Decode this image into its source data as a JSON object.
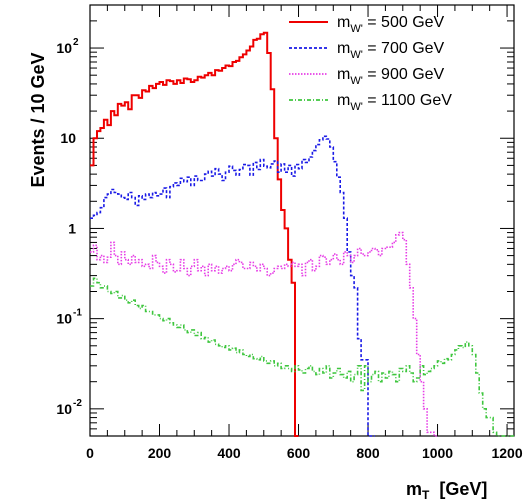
{
  "chart_data": {
    "type": "line",
    "title": "",
    "xlabel": {
      "main": "m",
      "sub": "T",
      "unit": "[GeV]"
    },
    "ylabel": "Events / 10  GeV",
    "xlim": [
      0,
      1220
    ],
    "ylim": [
      0.005,
      300
    ],
    "y_scale": "log",
    "grid": false,
    "legend_position": "top-right",
    "x_ticks": [
      0,
      200,
      400,
      600,
      800,
      1000,
      1200
    ],
    "y_ticks": [
      {
        "value": 0.01,
        "base": "10",
        "exp": "-2"
      },
      {
        "value": 0.1,
        "base": "10",
        "exp": "-1"
      },
      {
        "value": 1,
        "base": "1",
        "exp": ""
      },
      {
        "value": 10,
        "base": "10",
        "exp": ""
      },
      {
        "value": 100,
        "base": "10",
        "exp": "2"
      }
    ],
    "series": [
      {
        "name": "m_W' = 500 GeV",
        "legend": {
          "m": "m",
          "sub": "W'",
          "rest": " = 500 GeV"
        },
        "color": "#ee0000",
        "dash": "",
        "x": [
          0,
          10,
          20,
          30,
          40,
          50,
          60,
          70,
          80,
          90,
          100,
          110,
          120,
          130,
          140,
          150,
          160,
          170,
          180,
          190,
          200,
          210,
          220,
          230,
          240,
          250,
          260,
          270,
          280,
          290,
          300,
          310,
          320,
          330,
          340,
          350,
          360,
          370,
          380,
          390,
          400,
          410,
          420,
          430,
          440,
          450,
          460,
          470,
          480,
          490,
          500,
          510,
          520,
          530,
          540,
          550,
          560,
          570,
          580,
          590
        ],
        "values": [
          5,
          10,
          12,
          13,
          16,
          14,
          20,
          18,
          24,
          23,
          25,
          21,
          30,
          30,
          28,
          34,
          33,
          38,
          36,
          40,
          42,
          39,
          44,
          43,
          40,
          44,
          41,
          46,
          45,
          42,
          44,
          48,
          47,
          50,
          53,
          50,
          57,
          56,
          60,
          64,
          63,
          70,
          72,
          79,
          85,
          94,
          104,
          123,
          127,
          142,
          148,
          88,
          35,
          10,
          3.5,
          1.6,
          1.0,
          0.45,
          0.25,
          0.005
        ]
      },
      {
        "name": "m_W' = 700 GeV",
        "legend": {
          "m": "m",
          "sub": "W'",
          "rest": " = 700 GeV"
        },
        "color": "#1a1ae6",
        "dash": "3,2",
        "x": [
          0,
          10,
          20,
          30,
          40,
          50,
          60,
          70,
          80,
          90,
          100,
          110,
          120,
          130,
          140,
          150,
          160,
          170,
          180,
          190,
          200,
          210,
          220,
          230,
          240,
          250,
          260,
          270,
          280,
          290,
          300,
          310,
          320,
          330,
          340,
          350,
          360,
          370,
          380,
          390,
          400,
          410,
          420,
          430,
          440,
          450,
          460,
          470,
          480,
          490,
          500,
          510,
          520,
          530,
          540,
          550,
          560,
          570,
          580,
          590,
          600,
          610,
          620,
          630,
          640,
          650,
          660,
          670,
          680,
          690,
          700,
          710,
          720,
          730,
          740,
          750,
          760,
          770,
          780,
          790,
          800,
          810
        ],
        "values": [
          1.3,
          1.4,
          1.5,
          1.7,
          2.2,
          2.4,
          2.7,
          2.5,
          2.4,
          2.2,
          2.1,
          2.5,
          2.2,
          1.8,
          2.3,
          2.1,
          2.4,
          2.2,
          2.5,
          2.3,
          2.4,
          2.8,
          2.2,
          2.9,
          3.2,
          3.0,
          3.6,
          3.3,
          3.7,
          3.0,
          3.8,
          3.4,
          3.4,
          4.0,
          4.3,
          3.8,
          4.6,
          4.0,
          3.4,
          4.2,
          4.9,
          4.4,
          3.9,
          4.5,
          5.1,
          5.0,
          3.9,
          5.4,
          4.5,
          5.8,
          4.9,
          4.7,
          5.2,
          5.6,
          4.2,
          5.2,
          4.2,
          5.0,
          3.8,
          5.1,
          4.6,
          5.8,
          5.4,
          6.2,
          7.3,
          8.5,
          9.6,
          10.5,
          9.8,
          8.0,
          5.5,
          3.7,
          2.5,
          1.3,
          0.55,
          0.3,
          0.22,
          0.06,
          0.035,
          0.035,
          0.005,
          0.005
        ]
      },
      {
        "name": "m_W' = 900 GeV",
        "legend": {
          "m": "m",
          "sub": "W'",
          "rest": " = 900 GeV"
        },
        "color": "#e63ee6",
        "dash": "1.5,1.5",
        "x": [
          0,
          10,
          20,
          30,
          40,
          50,
          60,
          70,
          80,
          90,
          100,
          110,
          120,
          130,
          140,
          150,
          160,
          170,
          180,
          190,
          200,
          210,
          220,
          230,
          240,
          250,
          260,
          270,
          280,
          290,
          300,
          310,
          320,
          330,
          340,
          350,
          360,
          370,
          380,
          390,
          400,
          410,
          420,
          430,
          440,
          450,
          460,
          470,
          480,
          490,
          500,
          510,
          520,
          530,
          540,
          550,
          560,
          570,
          580,
          590,
          600,
          610,
          620,
          630,
          640,
          650,
          660,
          670,
          680,
          690,
          700,
          710,
          720,
          730,
          740,
          750,
          760,
          770,
          780,
          790,
          800,
          810,
          820,
          830,
          840,
          850,
          860,
          870,
          880,
          890,
          900,
          910,
          920,
          930,
          940,
          950,
          960,
          970,
          980,
          990
        ],
        "values": [
          0.55,
          0.65,
          0.45,
          0.5,
          0.42,
          0.48,
          0.7,
          0.5,
          0.4,
          0.55,
          0.45,
          0.4,
          0.5,
          0.42,
          0.45,
          0.38,
          0.4,
          0.36,
          0.5,
          0.42,
          0.38,
          0.32,
          0.45,
          0.4,
          0.33,
          0.34,
          0.45,
          0.36,
          0.3,
          0.38,
          0.45,
          0.34,
          0.38,
          0.3,
          0.4,
          0.34,
          0.38,
          0.32,
          0.36,
          0.38,
          0.34,
          0.4,
          0.45,
          0.42,
          0.36,
          0.36,
          0.42,
          0.38,
          0.34,
          0.4,
          0.36,
          0.3,
          0.32,
          0.36,
          0.38,
          0.36,
          0.4,
          0.38,
          0.42,
          0.38,
          0.4,
          0.3,
          0.42,
          0.45,
          0.34,
          0.38,
          0.5,
          0.48,
          0.4,
          0.45,
          0.52,
          0.45,
          0.4,
          0.55,
          0.5,
          0.42,
          0.5,
          0.6,
          0.52,
          0.5,
          0.55,
          0.6,
          0.58,
          0.5,
          0.6,
          0.62,
          0.62,
          0.7,
          0.85,
          0.9,
          0.75,
          0.4,
          0.22,
          0.1,
          0.04,
          0.02,
          0.01,
          0.0055,
          0.0055,
          0.005
        ]
      },
      {
        "name": "m_W' = 1100 GeV",
        "legend": {
          "m": "m",
          "sub": "W'",
          "rest": " = 1100 GeV"
        },
        "color": "#3ec63e",
        "dash": "4,2,1,2",
        "x": [
          0,
          10,
          20,
          30,
          40,
          50,
          60,
          70,
          80,
          90,
          100,
          110,
          120,
          130,
          140,
          150,
          160,
          170,
          180,
          190,
          200,
          210,
          220,
          230,
          240,
          250,
          260,
          270,
          280,
          290,
          300,
          310,
          320,
          330,
          340,
          350,
          360,
          370,
          380,
          390,
          400,
          410,
          420,
          430,
          440,
          450,
          460,
          470,
          480,
          490,
          500,
          510,
          520,
          530,
          540,
          550,
          560,
          570,
          580,
          590,
          600,
          610,
          620,
          630,
          640,
          650,
          660,
          670,
          680,
          690,
          700,
          710,
          720,
          730,
          740,
          750,
          760,
          770,
          780,
          790,
          800,
          810,
          820,
          830,
          840,
          850,
          860,
          870,
          880,
          890,
          900,
          910,
          920,
          930,
          940,
          950,
          960,
          970,
          980,
          990,
          1000,
          1010,
          1020,
          1030,
          1040,
          1050,
          1060,
          1070,
          1080,
          1090,
          1100,
          1110,
          1120,
          1130,
          1140,
          1150,
          1160,
          1170,
          1180,
          1190,
          1200,
          1210
        ],
        "values": [
          0.23,
          0.28,
          0.25,
          0.22,
          0.23,
          0.2,
          0.19,
          0.2,
          0.17,
          0.18,
          0.16,
          0.15,
          0.16,
          0.14,
          0.13,
          0.14,
          0.12,
          0.12,
          0.11,
          0.11,
          0.1,
          0.095,
          0.1,
          0.09,
          0.085,
          0.08,
          0.085,
          0.075,
          0.07,
          0.075,
          0.065,
          0.07,
          0.06,
          0.062,
          0.055,
          0.058,
          0.052,
          0.05,
          0.048,
          0.05,
          0.045,
          0.047,
          0.042,
          0.045,
          0.04,
          0.038,
          0.04,
          0.036,
          0.035,
          0.038,
          0.034,
          0.032,
          0.034,
          0.03,
          0.032,
          0.028,
          0.03,
          0.028,
          0.026,
          0.03,
          0.027,
          0.025,
          0.028,
          0.03,
          0.026,
          0.024,
          0.028,
          0.025,
          0.03,
          0.022,
          0.025,
          0.028,
          0.024,
          0.022,
          0.026,
          0.02,
          0.024,
          0.03,
          0.016,
          0.03,
          0.02,
          0.024,
          0.026,
          0.02,
          0.025,
          0.022,
          0.026,
          0.024,
          0.02,
          0.028,
          0.026,
          0.03,
          0.025,
          0.02,
          0.022,
          0.03,
          0.024,
          0.026,
          0.028,
          0.03,
          0.034,
          0.032,
          0.036,
          0.035,
          0.04,
          0.045,
          0.05,
          0.048,
          0.055,
          0.05,
          0.04,
          0.025,
          0.015,
          0.01,
          0.008,
          0.008,
          0.0055,
          0.005,
          0.005,
          0.005,
          0.005,
          0.005
        ]
      }
    ]
  }
}
